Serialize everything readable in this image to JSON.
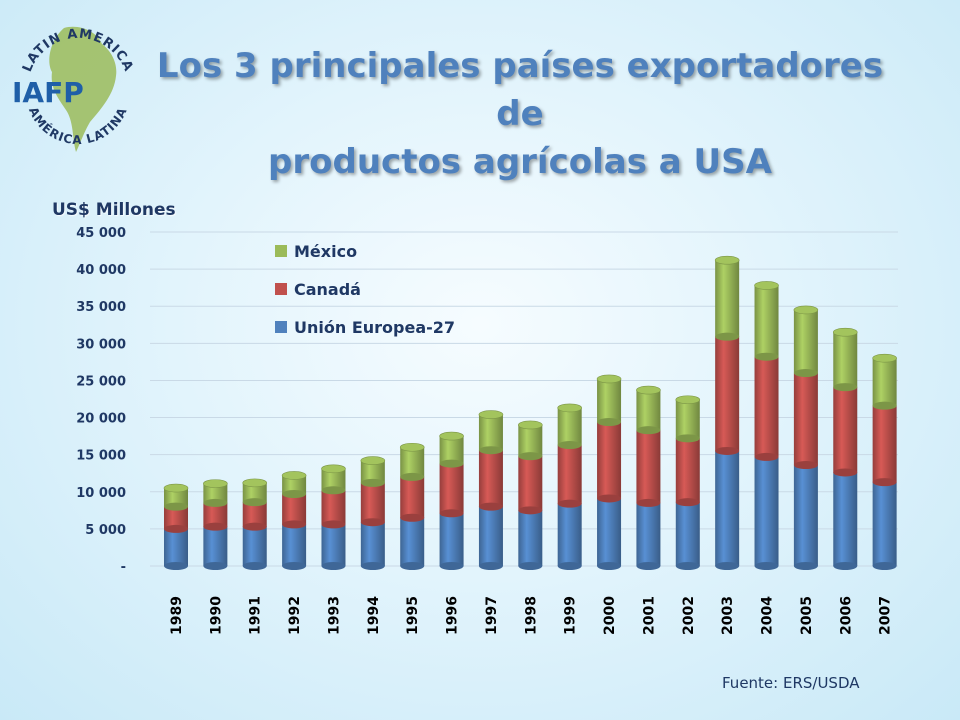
{
  "title_line1": "Los 3 principales países exportadores de",
  "title_line2": "productos agrícolas a USA",
  "logo": {
    "text_top": "LATIN AMERICA",
    "text_bottom": "AMÉRICA LATINA",
    "acronym": "IAFP"
  },
  "unit_label": "US$ Millones",
  "source": "Fuente: ERS/USDA",
  "colors": {
    "mexico": "#9bbb59",
    "canada": "#c0504d",
    "eu": "#4f81bd",
    "title": "#4f81bd"
  },
  "chart_data": {
    "type": "bar",
    "stacked": true,
    "categories": [
      "1989",
      "1990",
      "1991",
      "1992",
      "1993",
      "1994",
      "1995",
      "1996",
      "1997",
      "1998",
      "1999",
      "2000",
      "2001",
      "2002",
      "2003",
      "2004",
      "2005",
      "2006",
      "2007"
    ],
    "series": [
      {
        "name": "Unión Europea-27",
        "color": "#4f81bd",
        "values": [
          5000,
          5300,
          5300,
          5600,
          5600,
          5900,
          6500,
          7100,
          8000,
          7500,
          8400,
          9100,
          8500,
          8600,
          15500,
          14700,
          13600,
          12600,
          11300
        ]
      },
      {
        "name": "Canadá",
        "color": "#c0504d",
        "values": [
          3000,
          3200,
          3300,
          4100,
          4600,
          5300,
          5500,
          6700,
          7600,
          7300,
          7900,
          10300,
          9800,
          8600,
          15400,
          13500,
          12400,
          11500,
          10300
        ]
      },
      {
        "name": "México",
        "color": "#9bbb59",
        "values": [
          2500,
          2600,
          2600,
          2500,
          2900,
          3000,
          4000,
          3700,
          4800,
          4200,
          5000,
          5800,
          5400,
          5200,
          10300,
          9600,
          8500,
          7400,
          6400
        ]
      }
    ],
    "ylim": [
      0,
      45000
    ],
    "yticks": [
      0,
      5000,
      10000,
      15000,
      20000,
      25000,
      30000,
      35000,
      40000,
      45000
    ],
    "ytick_labels": [
      "-",
      "5 000",
      "10 000",
      "15 000",
      "20 000",
      "25 000",
      "30 000",
      "35 000",
      "40 000",
      "45 000"
    ],
    "ylabel": "US$ Millones",
    "xlabel": "",
    "grid": true,
    "legend_position": "top-left",
    "legend_order": [
      "México",
      "Canadá",
      "Unión Europea-27"
    ]
  }
}
